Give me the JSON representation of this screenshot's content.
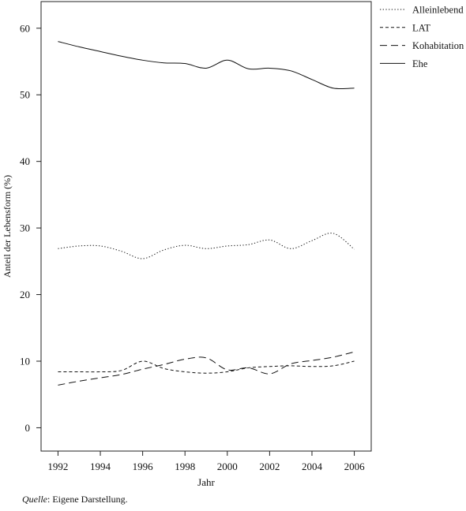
{
  "chart_data": {
    "type": "line",
    "title": "",
    "xlabel": "Jahr",
    "ylabel": "Anteil der Lebensform (%)",
    "xlim": [
      1991.2,
      2006.8
    ],
    "ylim": [
      -3.5,
      64
    ],
    "x_ticks": [
      1992,
      1994,
      1996,
      1998,
      2000,
      2002,
      2004,
      2006
    ],
    "y_ticks": [
      0,
      10,
      20,
      30,
      40,
      50,
      60
    ],
    "grid": false,
    "legend_position": "top-right outside",
    "series": [
      {
        "name": "Alleinlebend",
        "dash": "dotted",
        "x": [
          1992,
          1993,
          1994,
          1995,
          1996,
          1997,
          1998,
          1999,
          2000,
          2001,
          2002,
          2003,
          2004,
          2005,
          2006
        ],
        "y": [
          26.9,
          27.3,
          27.3,
          26.5,
          25.4,
          26.7,
          27.4,
          26.9,
          27.3,
          27.5,
          28.2,
          26.9,
          28.1,
          29.2,
          26.8
        ]
      },
      {
        "name": "LAT",
        "dash": "short-dash",
        "x": [
          1992,
          1993,
          1994,
          1995,
          1996,
          1997,
          1998,
          1999,
          2000,
          2001,
          2002,
          2003,
          2004,
          2005,
          2006
        ],
        "y": [
          8.4,
          8.4,
          8.4,
          8.6,
          10.0,
          8.9,
          8.4,
          8.2,
          8.4,
          9.0,
          9.2,
          9.3,
          9.2,
          9.3,
          10.0
        ]
      },
      {
        "name": "Kohabitation",
        "dash": "long-dash",
        "x": [
          1992,
          1993,
          1994,
          1995,
          1996,
          1997,
          1998,
          1999,
          2000,
          2001,
          2002,
          2003,
          2004,
          2005,
          2006
        ],
        "y": [
          6.4,
          7.0,
          7.5,
          8.0,
          8.8,
          9.5,
          10.3,
          10.5,
          8.7,
          9.0,
          8.1,
          9.6,
          10.1,
          10.6,
          11.4
        ]
      },
      {
        "name": "Ehe",
        "dash": "solid",
        "x": [
          1992,
          1993,
          1994,
          1995,
          1996,
          1997,
          1998,
          1999,
          2000,
          2001,
          2002,
          2003,
          2004,
          2005,
          2006
        ],
        "y": [
          58.0,
          57.2,
          56.5,
          55.8,
          55.2,
          54.8,
          54.7,
          54.0,
          55.2,
          53.9,
          54.0,
          53.6,
          52.3,
          51.0,
          51.0
        ]
      }
    ]
  },
  "caption": {
    "source_label": "Quelle",
    "source_text": ": Eigene Darstellung."
  }
}
